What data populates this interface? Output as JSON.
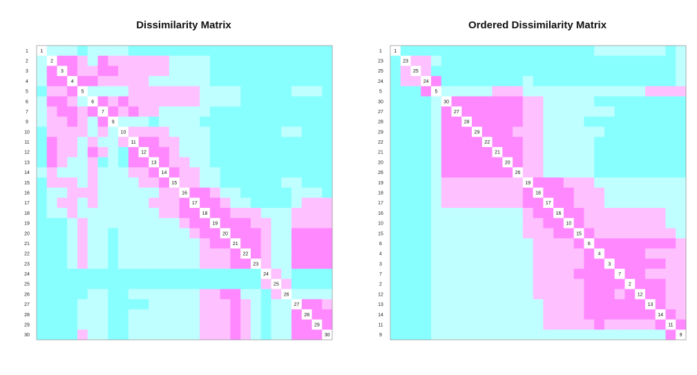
{
  "colors": {
    "level_0": "#ffffff",
    "level_1": "#ff88ff",
    "level_2": "#ffc0ff",
    "level_3": "#c0ffff",
    "level_4": "#88ffff",
    "frame": "#999999"
  },
  "chart_data": [
    {
      "type": "heatmap",
      "title": "Dissimilarity Matrix",
      "xlabel": "",
      "ylabel": "",
      "labels": [
        "1",
        "2",
        "3",
        "4",
        "5",
        "6",
        "7",
        "9",
        "10",
        "11",
        "12",
        "13",
        "14",
        "15",
        "16",
        "17",
        "18",
        "19",
        "20",
        "21",
        "22",
        "23",
        "24",
        "25",
        "26",
        "27",
        "28",
        "29",
        "30"
      ],
      "color_levels": [
        "#ffffff",
        "#ff88ff",
        "#ffc0ff",
        "#c0ffff",
        "#88ffff"
      ],
      "matrix": [
        "03334333344444444444444444444",
        "30112312222223333444444444444",
        "31012211222223333444444444444",
        "31101122222333333444444444444",
        "42210333322222223333444443334",
        "31123012122222223333444444444",
        "32112101212233333444444444444",
        "32212310333433334444444444444",
        "42222323022223333444444433444",
        "41223233201122333444444444444",
        "41223123410112333444444444444",
        "41233243411012233444444444444",
        "32333233322101223344444444444",
        "42223233332210223344444433444",
        "43322233333322011233444443334",
        "43223233333222101123344443222",
        "43323333333322110112223332222",
        "44432333333333211011122332222",
        "44432334333333321101112331111",
        "44432334333333332110112331111",
        "44432334333333332221012331111",
        "44432334333333332221102331111",
        "44444444444444444444440234444",
        "44444444444444444444442024444",
        "44444334433333332211334203333",
        "44443334444333332221234330112",
        "44443334433333332221234331011",
        "44443334433333332221234331101",
        "44442334433333332221234331110"
      ]
    },
    {
      "type": "heatmap",
      "title": "Ordered Dissimilarity Matrix",
      "xlabel": "",
      "ylabel": "",
      "labels": [
        "1",
        "23",
        "25",
        "24",
        "5",
        "30",
        "27",
        "28",
        "29",
        "22",
        "21",
        "20",
        "26",
        "19",
        "18",
        "17",
        "16",
        "10",
        "15",
        "6",
        "4",
        "3",
        "7",
        "2",
        "12",
        "13",
        "14",
        "11",
        "9"
      ],
      "color_levels": [
        "#ffffff",
        "#ff88ff",
        "#ffc0ff",
        "#c0ffff",
        "#88ffff"
      ],
      "matrix": [
        "04444444444444444444333333343",
        "40223444444444444444444444443",
        "42024444444444444444444444443",
        "42201444444443444444444444443",
        "44410333332223333333333332222",
        "44443011111112233333444444444",
        "44443101111112233333334444444",
        "44443110111112233334444444444",
        "44443111011122233333344444444",
        "44443111101112233333444444444",
        "44443111110112233333444444444",
        "44443111111012233333444444444",
        "44443111111102233333444444444",
        "44443222222220111222333333333",
        "44443222222221011122233333333",
        "44443222222221101122233333333",
        "44443333333332110112222222233",
        "44443333333332211012222222233",
        "44443333333332221101222222223",
        "44443333333333222210111111112",
        "44443333333333222221011112222",
        "44443333333333222221101111122",
        "44443333333333222211110112222",
        "44443333333333222221111011122",
        "44443333333333222221112101122",
        "44443333333333322221111110122",
        "44443333333333322221111111012",
        "44443333333333322222122222101",
        "44443333333333333333333333310"
      ]
    }
  ]
}
